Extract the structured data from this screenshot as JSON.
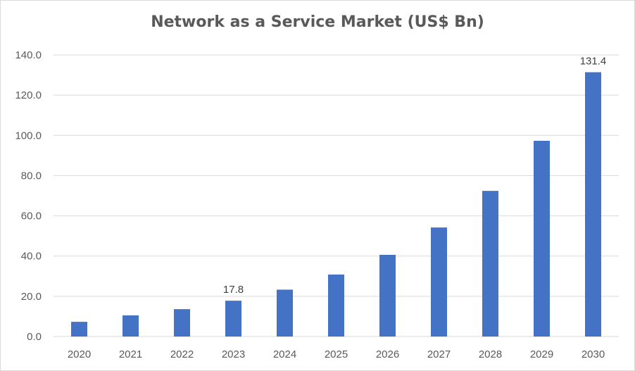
{
  "chart_data": {
    "type": "bar",
    "title": "Network as a Service Market (US$ Bn)",
    "xlabel": "",
    "ylabel": "",
    "categories": [
      "2020",
      "2021",
      "2022",
      "2023",
      "2024",
      "2025",
      "2026",
      "2027",
      "2028",
      "2029",
      "2030"
    ],
    "values": [
      7.3,
      10.5,
      13.6,
      17.8,
      23.3,
      30.8,
      40.6,
      54.2,
      72.4,
      97.3,
      131.4
    ],
    "data_labels": [
      {
        "category": "2023",
        "text": "17.8"
      },
      {
        "category": "2030",
        "text": "131.4"
      }
    ],
    "ylim": [
      0,
      140
    ],
    "yticks": [
      "0.0",
      "20.0",
      "40.0",
      "60.0",
      "80.0",
      "100.0",
      "120.0",
      "140.0"
    ],
    "grid": true,
    "legend": "none",
    "colors": {
      "bar": "#4472c4",
      "grid": "#d9d9d9",
      "text": "#595959"
    }
  }
}
